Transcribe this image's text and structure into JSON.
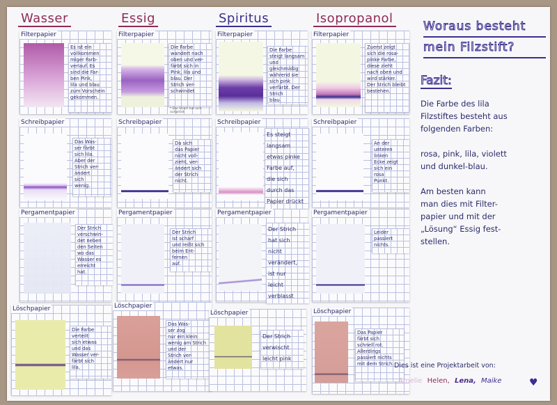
{
  "headers": [
    "Wasser",
    "Essig",
    "Spiritus",
    "Isopropanol"
  ],
  "title": {
    "line1": "Woraus besteht",
    "line2": "mein Filzstift?"
  },
  "fazit": {
    "heading": "Fazit:",
    "text": "Die Farbe des lila\nFilzstiftes besteht aus\nfolgenden Farben:\n\nrosa, pink, lila, violett\nund dunkel-blau.\n\nAm besten kann\nman dies mit Filter-\npapier und mit der\n„Lösung“ Essig fest-\nstellen."
  },
  "credit": "Dies ist eine Projektarbeit von:",
  "names": [
    "Amelie",
    "Helen,",
    "Lena,",
    "Maike"
  ],
  "colors": {
    "ink": "#2b2b6a",
    "header": "#3a2e8e",
    "accent": "#8f2b54"
  },
  "cells": [
    {
      "label": "Filterpapier",
      "text": "Es ist ein\nvollkommen\nmiger Farb-\nverlauf. Es\nsind die Far-\nben Pink,\nlila und blau\nzum Vorschein\ngekommen."
    },
    {
      "label": "Filterpapier",
      "text": "Die Farbe\nwandert nach\noben und ver-\nfärbt sich in\nPink, lila und\nblau. Der\nStrich ver-\nschwindet",
      "note": "* Der Strich hat sich aufgelöst"
    },
    {
      "label": "Filterpapier",
      "text": "Die Farbe\nsteigt langsam\nund gleichmäßig\nwährend sie\nsich pink\nverfärbt. Der\nStrich\nblau."
    },
    {
      "label": "Filterpapier",
      "text": "Zuerst zeigt\nsich die rosa-\npinke Farbe,\ndiese zieht\nnach oben und\nwird stärker.\nDer Strich bleibt\nbestehen."
    },
    {
      "label": "Schreibpapier",
      "text": "Das Was-\nser färbt\nsich lila.\nAber der\nStrich ver-\nändert\nsich\nwenig."
    },
    {
      "label": "Schreibpapier",
      "text": "Da sich\ndas Papier\nnicht voll-\nzieht, ver-\nändert sich\nder Strich\nnicht."
    },
    {
      "label": "Schreibpapier",
      "text": "Es steigt\nlangsam\netwas pinke\nFarbe auf,\ndie sich\ndurch das\nPapier drückt"
    },
    {
      "label": "Schreibpapier",
      "text": "An der\nunteren\nlinken\nEcke zeigt\nsich ein\nrosa\nPunkt."
    },
    {
      "label": "Pergamentpapier",
      "text": "Der Strich\nverschwin-\ndet neben\nden Seiten\nwo das\nWasser es\nerreicht\nhat."
    },
    {
      "label": "Pergamentpapier",
      "text": "Der Strich\nist scharf\nund reißt sich\nbeim Ent-\nfernen\nauf."
    },
    {
      "label": "Pergamentpapier",
      "text": "Der Strich\nhat sich\nnicht\nverändert,\nist nur\nleicht\nverblasst"
    },
    {
      "label": "Pergamentpapier",
      "text": "Leider\npassiert\nnichts."
    },
    {
      "label": "Löschpapier",
      "text": "Die Farbe\nverteilt\nsich etwas\nund das\nWasser ver-\nfärbt sich\nlila."
    },
    {
      "label": "Löschpapier",
      "text": "Das Was-\nser zog\nnur ein klein\nwenig am Strich\nund der\nStrich ver-\nändert nur\netwas."
    },
    {
      "label": "Löschpapier",
      "text": "Der Strich\nverwischt\nleicht pink"
    },
    {
      "label": "Löschpapier",
      "text": "Das Papier\nfärbt sich\nschnell rot.\nAllerdings\npassiert nichts\nmit dem Strich."
    }
  ]
}
